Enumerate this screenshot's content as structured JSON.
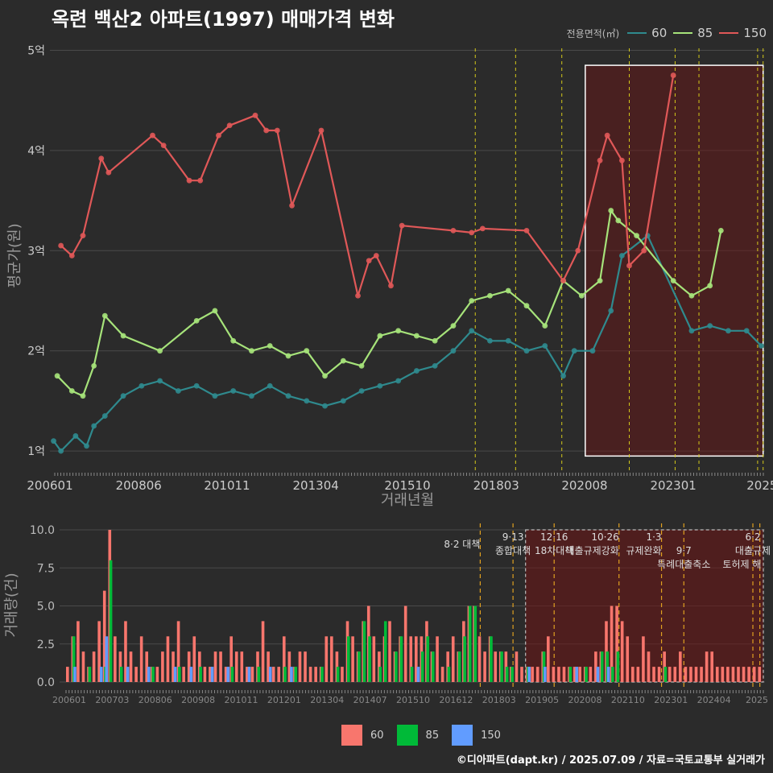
{
  "title": "옥련 백산2 아파트(1997) 매매가격 변화",
  "footer": "©디아파트(dapt.kr) / 2025.07.09 / 자료=국토교통부 실거래가",
  "legend": {
    "title": "전용면적(㎡)",
    "items": [
      {
        "label": "60",
        "line_color": "#2f8a8e",
        "bar_color": "#f8766d"
      },
      {
        "label": "85",
        "line_color": "#a6e37a",
        "bar_color": "#00ba38"
      },
      {
        "label": "150",
        "line_color": "#e05858",
        "bar_color": "#619cff"
      }
    ]
  },
  "chart_data": [
    {
      "type": "line",
      "title": "옥련 백산2 아파트(1997) 매매가격 변화",
      "xlabel": "거래년월",
      "ylabel": "평균가(원)",
      "xlim": [
        2006.0,
        2025.5
      ],
      "ylim": [
        0.8,
        5.1
      ],
      "x_ticks": [
        2006.0,
        2008.42,
        2010.83,
        2013.25,
        2015.75,
        2018.17,
        2020.58,
        2023.0,
        2025.42
      ],
      "x_tick_labels": [
        "200601",
        "200806",
        "201011",
        "201304",
        "201510",
        "201803",
        "202008",
        "202301",
        "2025"
      ],
      "y_ticks": [
        1,
        2,
        3,
        4,
        5
      ],
      "y_tick_labels": [
        "1억",
        "2억",
        "3억",
        "4억",
        "5억"
      ],
      "policy_lines": [
        2017.6,
        2018.7,
        2019.96,
        2021.8,
        2023.05,
        2023.7,
        2025.3,
        2025.45
      ],
      "highlight_range": [
        2020.6,
        2025.45
      ],
      "highlight_y": [
        0.95,
        4.85
      ],
      "series": [
        {
          "name": "60",
          "color": "#2f8a8e",
          "x": [
            2006.1,
            2006.3,
            2006.7,
            2007.0,
            2007.2,
            2007.5,
            2008.0,
            2008.5,
            2009.0,
            2009.5,
            2010.0,
            2010.5,
            2011.0,
            2011.5,
            2012.0,
            2012.5,
            2013.0,
            2013.5,
            2014.0,
            2014.5,
            2015.0,
            2015.5,
            2016.0,
            2016.5,
            2017.0,
            2017.5,
            2018.0,
            2018.5,
            2019.0,
            2019.5,
            2020.0,
            2020.3,
            2020.8,
            2021.3,
            2021.6,
            2022.3,
            2023.5,
            2024.0,
            2024.5,
            2025.0,
            2025.4
          ],
          "y": [
            1.1,
            1.0,
            1.15,
            1.05,
            1.25,
            1.35,
            1.55,
            1.65,
            1.7,
            1.6,
            1.65,
            1.55,
            1.6,
            1.55,
            1.65,
            1.55,
            1.5,
            1.45,
            1.5,
            1.6,
            1.65,
            1.7,
            1.8,
            1.85,
            2.0,
            2.2,
            2.1,
            2.1,
            2.0,
            2.05,
            1.75,
            2.0,
            2.0,
            2.4,
            2.95,
            3.15,
            2.2,
            2.25,
            2.2,
            2.2,
            2.05
          ]
        },
        {
          "name": "85",
          "color": "#a6e37a",
          "x": [
            2006.2,
            2006.6,
            2006.9,
            2007.2,
            2007.5,
            2008.0,
            2009.0,
            2010.0,
            2010.5,
            2011.0,
            2011.5,
            2012.0,
            2012.5,
            2013.0,
            2013.5,
            2014.0,
            2014.5,
            2015.0,
            2015.5,
            2016.0,
            2016.5,
            2017.0,
            2017.5,
            2018.0,
            2018.5,
            2019.0,
            2019.5,
            2020.0,
            2020.5,
            2021.0,
            2021.3,
            2021.5,
            2022.0,
            2023.0,
            2023.5,
            2024.0,
            2024.3
          ],
          "y": [
            1.75,
            1.6,
            1.55,
            1.85,
            2.35,
            2.15,
            2.0,
            2.3,
            2.4,
            2.1,
            2.0,
            2.05,
            1.95,
            2.0,
            1.75,
            1.9,
            1.85,
            2.15,
            2.2,
            2.15,
            2.1,
            2.25,
            2.5,
            2.55,
            2.6,
            2.45,
            2.25,
            2.7,
            2.55,
            2.7,
            3.4,
            3.3,
            3.15,
            2.7,
            2.55,
            2.65,
            3.2
          ]
        },
        {
          "name": "150",
          "color": "#e05858",
          "x": [
            2006.3,
            2006.6,
            2006.9,
            2007.4,
            2007.6,
            2008.8,
            2009.1,
            2009.8,
            2010.1,
            2010.6,
            2010.9,
            2011.6,
            2011.9,
            2012.2,
            2012.6,
            2013.4,
            2014.4,
            2014.7,
            2014.9,
            2015.3,
            2015.6,
            2017.0,
            2017.5,
            2017.8,
            2019.0,
            2020.0,
            2020.4,
            2021.0,
            2021.2,
            2021.6,
            2021.8,
            2022.2,
            2023.0
          ],
          "y": [
            3.05,
            2.95,
            3.15,
            3.92,
            3.78,
            4.15,
            4.05,
            3.7,
            3.7,
            4.15,
            4.25,
            4.35,
            4.2,
            4.2,
            3.45,
            4.2,
            2.55,
            2.9,
            2.95,
            2.65,
            3.25,
            3.2,
            3.18,
            3.22,
            3.2,
            2.7,
            3.0,
            3.9,
            4.15,
            3.9,
            2.85,
            3.0,
            4.75
          ]
        }
      ]
    },
    {
      "type": "bar",
      "title": "",
      "xlabel": "",
      "ylabel": "거래량(건)",
      "ylim": [
        0,
        10
      ],
      "y_ticks": [
        0,
        2.5,
        5,
        7.5,
        10
      ],
      "y_tick_labels": [
        "0.0",
        "2.5",
        "5.0",
        "7.5",
        "10.0"
      ],
      "x_tick_labels": [
        "200601",
        "200703",
        "200806",
        "200908",
        "201011",
        "201201",
        "201304",
        "201407",
        "201510",
        "201612",
        "201803",
        "201905",
        "202008",
        "202110",
        "202301",
        "202404",
        "2025"
      ],
      "annotations": [
        {
          "date": "8·2 대책",
          "text": ""
        },
        {
          "date": "9·13",
          "text": "종합대책"
        },
        {
          "date": "12·16",
          "text": "18차대책"
        },
        {
          "date": "10·26",
          "text": "대출규제강화"
        },
        {
          "date": "1·3",
          "text": "규제완화"
        },
        {
          "date": "9·7",
          "text": "특례대출축소"
        },
        {
          "date": "6·2",
          "text": "대출규제"
        },
        {
          "date": "",
          "text": "토허제 해"
        }
      ],
      "series": [
        {
          "name": "60",
          "color": "#f8766d",
          "values": [
            1,
            3,
            4,
            2,
            1,
            2,
            4,
            6,
            10,
            3,
            2,
            4,
            2,
            1,
            3,
            2,
            1,
            1,
            2,
            3,
            2,
            4,
            1,
            2,
            3,
            2,
            1,
            1,
            2,
            2,
            1,
            3,
            2,
            2,
            1,
            1,
            2,
            4,
            2,
            1,
            1,
            3,
            2,
            1,
            2,
            2,
            1,
            1,
            1,
            3,
            3,
            2,
            1,
            4,
            3,
            2,
            4,
            5,
            3,
            2,
            3,
            4,
            2,
            3,
            5,
            3,
            3,
            3,
            4,
            2,
            3,
            1,
            2,
            3,
            2,
            4,
            5,
            5,
            3,
            2,
            3,
            2,
            2,
            2,
            1,
            2,
            1,
            1,
            1,
            1,
            2,
            3,
            1,
            1,
            1,
            1,
            1,
            1,
            1,
            1,
            2,
            2,
            4,
            5,
            5,
            4,
            3,
            1,
            1,
            3,
            2,
            1,
            1,
            2,
            1,
            1,
            2,
            1,
            1,
            1,
            1,
            2,
            2,
            1,
            1,
            1,
            1,
            1,
            1,
            1,
            1,
            1
          ]
        },
        {
          "name": "85",
          "color": "#00ba38",
          "values": [
            0,
            3,
            0,
            0,
            1,
            0,
            0,
            1,
            8,
            0,
            1,
            0,
            0,
            0,
            0,
            0,
            1,
            0,
            0,
            0,
            0,
            1,
            0,
            0,
            0,
            1,
            0,
            0,
            0,
            0,
            0,
            1,
            0,
            0,
            0,
            0,
            1,
            0,
            0,
            0,
            0,
            1,
            0,
            1,
            0,
            0,
            0,
            0,
            1,
            0,
            0,
            1,
            0,
            3,
            0,
            2,
            4,
            3,
            0,
            1,
            4,
            0,
            2,
            3,
            0,
            1,
            0,
            2,
            3,
            2,
            0,
            0,
            1,
            0,
            2,
            3,
            5,
            5,
            0,
            0,
            3,
            0,
            2,
            1,
            1,
            0,
            0,
            1,
            0,
            0,
            2,
            0,
            0,
            0,
            0,
            1,
            0,
            0,
            1,
            0,
            0,
            2,
            2,
            1,
            2,
            0,
            0,
            0,
            0,
            0,
            0,
            0,
            0,
            1,
            0,
            0,
            0,
            0,
            0,
            0,
            0,
            0,
            0,
            0,
            0,
            0,
            0,
            0,
            0,
            0,
            0,
            0
          ]
        },
        {
          "name": "150",
          "color": "#619cff",
          "values": [
            0,
            1,
            0,
            0,
            0,
            0,
            1,
            3,
            0,
            0,
            0,
            1,
            0,
            0,
            0,
            1,
            0,
            0,
            0,
            0,
            1,
            0,
            0,
            1,
            0,
            0,
            0,
            1,
            0,
            0,
            1,
            0,
            0,
            0,
            1,
            0,
            0,
            0,
            1,
            0,
            0,
            0,
            1,
            0,
            0,
            0,
            0,
            0,
            0,
            0,
            0,
            0,
            0,
            0,
            0,
            0,
            0,
            0,
            0,
            0,
            0,
            0,
            0,
            0,
            0,
            0,
            1,
            0,
            0,
            0,
            0,
            0,
            0,
            0,
            0,
            0,
            0,
            0,
            0,
            0,
            0,
            0,
            0,
            0,
            0,
            0,
            0,
            1,
            0,
            0,
            1,
            0,
            0,
            0,
            0,
            0,
            1,
            0,
            0,
            0,
            1,
            0,
            1,
            0,
            0,
            0,
            0,
            0,
            0,
            0,
            0,
            0,
            0,
            0,
            0,
            0,
            0,
            0,
            0,
            0,
            0,
            0,
            0,
            0,
            0,
            0,
            0,
            0,
            0,
            0,
            0,
            0
          ]
        }
      ]
    }
  ]
}
